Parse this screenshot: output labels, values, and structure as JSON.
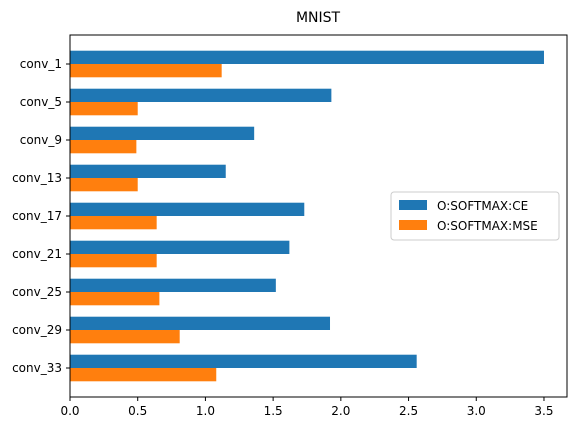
{
  "chart_data": {
    "type": "bar",
    "orientation": "horizontal",
    "title": "MNIST",
    "xlabel": "",
    "ylabel": "",
    "categories": [
      "conv_1",
      "conv_5",
      "conv_9",
      "conv_13",
      "conv_17",
      "conv_21",
      "conv_25",
      "conv_29",
      "conv_33"
    ],
    "series": [
      {
        "name": "O:SOFTMAX:CE",
        "color": "#1f77b4",
        "values": [
          3.5,
          1.93,
          1.36,
          1.15,
          1.73,
          1.62,
          1.52,
          1.92,
          2.56
        ]
      },
      {
        "name": "O:SOFTMAX:MSE",
        "color": "#ff7f0e",
        "values": [
          1.12,
          0.5,
          0.49,
          0.5,
          0.64,
          0.64,
          0.66,
          0.81,
          1.08
        ]
      }
    ],
    "xlim": [
      0,
      3.67
    ],
    "xticks": [
      0.0,
      0.5,
      1.0,
      1.5,
      2.0,
      2.5,
      3.0,
      3.5
    ],
    "xtick_labels": [
      "0.0",
      "0.5",
      "1.0",
      "1.5",
      "2.0",
      "2.5",
      "3.0",
      "3.5"
    ],
    "grid": false,
    "legend_position": "center-right"
  }
}
